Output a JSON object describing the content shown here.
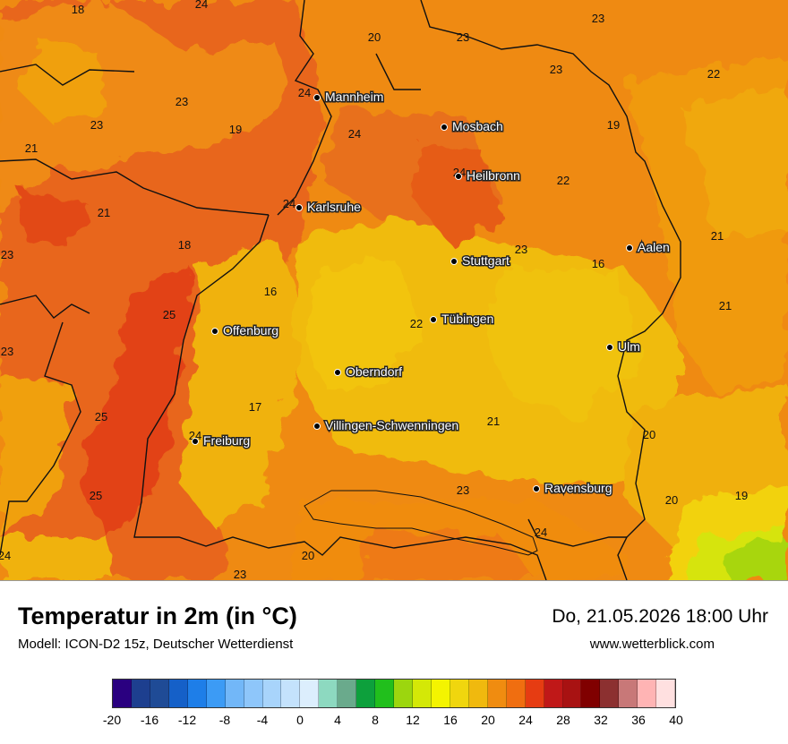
{
  "title": "Temperatur in 2m (in °C)",
  "subtitle": "Modell: ICON-D2 15z, Deutscher Wetterdienst",
  "datetime": "Do, 21.05.2026 18:00 Uhr",
  "website": "www.wetterblick.com",
  "legend": {
    "ticks": [
      "-20",
      "-16",
      "-12",
      "-8",
      "-4",
      "0",
      "4",
      "8",
      "12",
      "16",
      "20",
      "24",
      "28",
      "32",
      "36",
      "40"
    ],
    "colors": [
      "#2a0080",
      "#1d3f8f",
      "#1f4b96",
      "#1560c8",
      "#1e7ee8",
      "#3c9bf5",
      "#72b7f8",
      "#8ec6fa",
      "#a8d4fb",
      "#c4e2fc",
      "#dceefd",
      "#8dd9c0",
      "#6aaa8c",
      "#0da03c",
      "#21bf1c",
      "#9cd60e",
      "#d4e807",
      "#f4f400",
      "#f0d60e",
      "#f0b90e",
      "#f08c10",
      "#f06e10",
      "#e63c12",
      "#c01818",
      "#a81212",
      "#800000",
      "#8c3030",
      "#c87878",
      "#ffb4b4",
      "#ffe0e0"
    ]
  },
  "cities": [
    {
      "name": "Mannheim"
    },
    {
      "name": "Mosbach"
    },
    {
      "name": "Heilbronn"
    },
    {
      "name": "Karlsruhe"
    },
    {
      "name": "Aalen"
    },
    {
      "name": "Stuttgart"
    },
    {
      "name": "Tübingen"
    },
    {
      "name": "Offenburg"
    },
    {
      "name": "Ulm"
    },
    {
      "name": "Oberndorf"
    },
    {
      "name": "Villingen-Schwenningen"
    },
    {
      "name": "Freiburg"
    },
    {
      "name": "Ravensburg"
    }
  ],
  "temperatures": [
    "18",
    "24",
    "20",
    "23",
    "23",
    "22",
    "24",
    "23",
    "23",
    "19",
    "24",
    "23",
    "19",
    "22",
    "21",
    "24",
    "24",
    "21",
    "23",
    "18",
    "16",
    "23",
    "25",
    "22",
    "21",
    "16",
    "23",
    "21",
    "25",
    "17",
    "24",
    "21",
    "20",
    "25",
    "23",
    "20",
    "19",
    "24",
    "24",
    "20",
    "23"
  ]
}
